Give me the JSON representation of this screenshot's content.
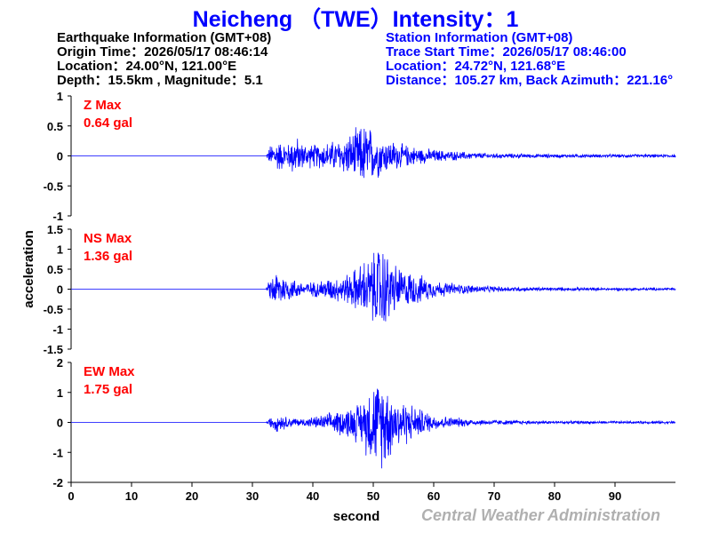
{
  "title": "Neicheng （TWE）Intensity：1",
  "earthquake_info": {
    "header": "Earthquake Information  (GMT+08)",
    "origin_time": "Origin Time：2026/05/17 08:46:14",
    "location": "Location：24.00°N, 121.00°E",
    "depth_magnitude": "Depth：15.5km , Magnitude：5.1"
  },
  "station_info": {
    "header": "Station Information  (GMT+08)",
    "trace_start": "Trace Start Time：2026/05/17 08:46:00",
    "location": "Location：24.72°N, 121.68°E",
    "distance": "Distance：105.27 km, Back Azimuth：221.16°"
  },
  "credit": "Central Weather Administration",
  "colors": {
    "trace": "#0000ff",
    "max_label": "#ff0000",
    "title": "#0000ff",
    "station_info": "#0000ff",
    "credit": "#b0b0b0"
  },
  "chart_data": {
    "type": "line",
    "xlabel": "second",
    "ylabel": "acceleration",
    "xlim": [
      0,
      100
    ],
    "xticks": [
      0,
      10,
      20,
      30,
      40,
      50,
      60,
      70,
      80,
      90
    ],
    "panels": [
      {
        "component": "Z",
        "max_label": "Z Max",
        "max_value": "0.64 gal",
        "ylim": [
          -1,
          1
        ],
        "yticks": [
          1,
          0.5,
          0,
          -0.5,
          -1
        ],
        "ytick_labels": [
          "1",
          "0.5",
          "0",
          "-0.5",
          "-1"
        ],
        "series": [
          {
            "x": [
              0,
              32.3,
              33.0,
              34.0,
              35.0,
              36.0,
              37.0,
              38.0,
              40.0,
              42.0,
              44.0,
              46.0,
              48.0,
              49.0,
              50.0,
              51.0,
              52.0,
              53.0,
              55.0,
              58.0,
              62.0,
              66.0,
              70.0,
              75.0,
              80.0,
              90.0,
              100.0
            ],
            "y": [
              0.005,
              0.01,
              0.22,
              0.32,
              0.26,
              0.24,
              0.42,
              0.26,
              0.22,
              0.26,
              0.3,
              0.4,
              0.58,
              0.64,
              0.46,
              0.4,
              0.32,
              0.3,
              0.22,
              0.15,
              0.1,
              0.07,
              0.05,
              0.04,
              0.035,
              0.03,
              0.03
            ]
          }
        ]
      },
      {
        "component": "NS",
        "max_label": "NS Max",
        "max_value": "1.36 gal",
        "ylim": [
          -1.5,
          1.5
        ],
        "yticks": [
          1.5,
          1,
          0.5,
          0,
          -0.5,
          -1,
          -1.5
        ],
        "ytick_labels": [
          "1.5",
          "1",
          "0.5",
          "0",
          "-0.5",
          "-1",
          "-1.5"
        ],
        "series": [
          {
            "x": [
              0,
              32.3,
              33.0,
              34.0,
              36.0,
              38.0,
              40.0,
              42.0,
              44.0,
              46.0,
              48.0,
              50.0,
              51.0,
              52.0,
              53.0,
              55.0,
              57.0,
              60.0,
              64.0,
              68.0,
              72.0,
              76.0,
              80.0,
              90.0,
              100.0
            ],
            "y": [
              0.005,
              0.02,
              0.35,
              0.55,
              0.35,
              0.22,
              0.2,
              0.3,
              0.35,
              0.45,
              0.75,
              1.0,
              1.36,
              1.15,
              0.8,
              0.55,
              0.45,
              0.25,
              0.15,
              0.1,
              0.07,
              0.06,
              0.05,
              0.04,
              0.04
            ]
          }
        ]
      },
      {
        "component": "EW",
        "max_label": "EW Max",
        "max_value": "1.75 gal",
        "ylim": [
          -2,
          2
        ],
        "yticks": [
          2,
          1,
          0,
          -1,
          -2
        ],
        "ytick_labels": [
          "2",
          "1",
          "0",
          "-1",
          "-2"
        ],
        "series": [
          {
            "x": [
              0,
              32.3,
              33.0,
              34.0,
              36.0,
              38.0,
              40.0,
              42.0,
              44.0,
              46.0,
              48.0,
              49.5,
              51.0,
              52.0,
              53.0,
              54.0,
              55.0,
              57.0,
              60.0,
              63.0,
              67.0,
              70.0,
              75.0,
              80.0,
              90.0,
              100.0
            ],
            "y": [
              0.005,
              0.02,
              0.2,
              0.35,
              0.2,
              0.15,
              0.2,
              0.3,
              0.45,
              0.6,
              0.8,
              1.5,
              1.6,
              1.75,
              1.2,
              1.0,
              0.9,
              0.6,
              0.3,
              0.2,
              0.12,
              0.1,
              0.07,
              0.06,
              0.05,
              0.05
            ]
          }
        ]
      }
    ]
  }
}
